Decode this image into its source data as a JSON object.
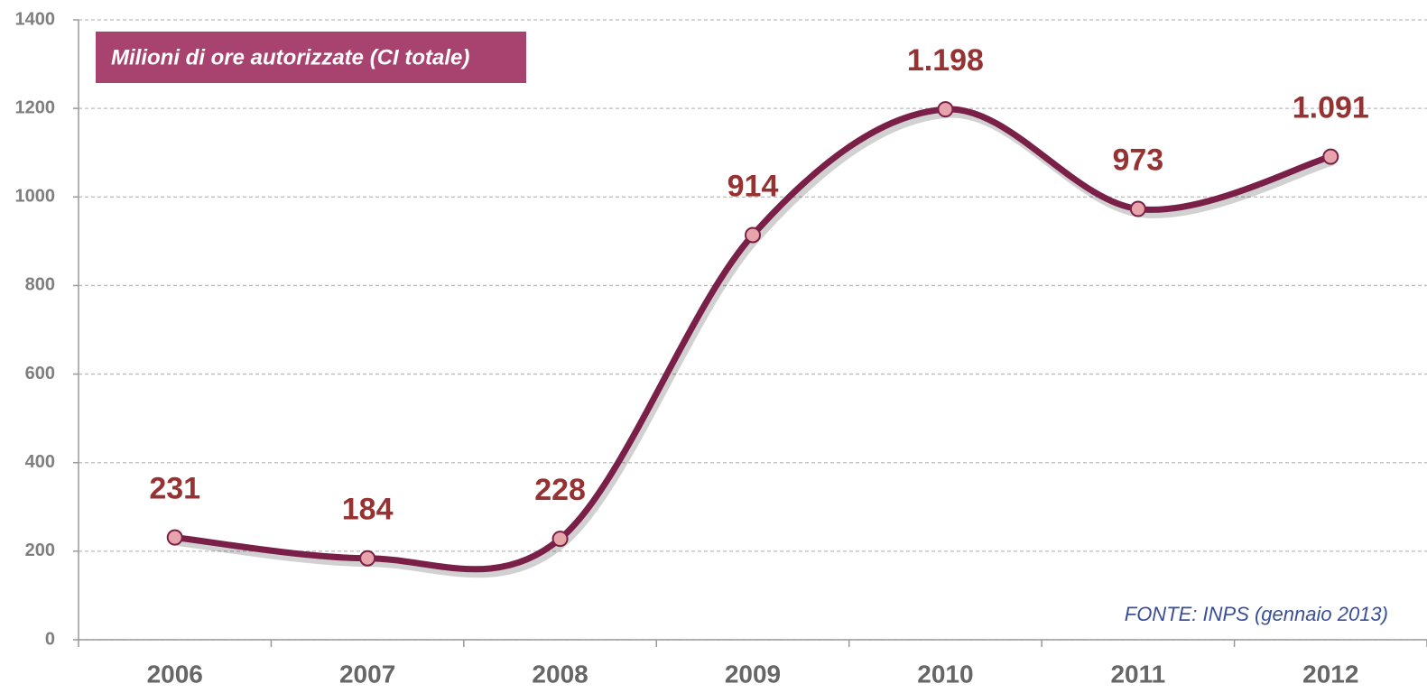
{
  "chart_data": {
    "type": "line",
    "title": "Milioni di ore autorizzate (CI totale)",
    "annotation": "FONTE: INPS (gennaio 2013)",
    "categories": [
      "2006",
      "2007",
      "2008",
      "2009",
      "2010",
      "2011",
      "2012"
    ],
    "series": [
      {
        "name": "Milioni di ore autorizzate (CI totale)",
        "color": "#7a2048",
        "values": [
          231,
          184,
          228,
          914,
          1198,
          973,
          1091
        ],
        "value_labels": [
          "231",
          "184",
          "228",
          "914",
          "1.198",
          "973",
          "1.091"
        ]
      }
    ],
    "ylim": [
      0,
      1400
    ],
    "yticks": [
      0,
      200,
      400,
      600,
      800,
      1000,
      1200,
      1400
    ],
    "grid": true
  }
}
